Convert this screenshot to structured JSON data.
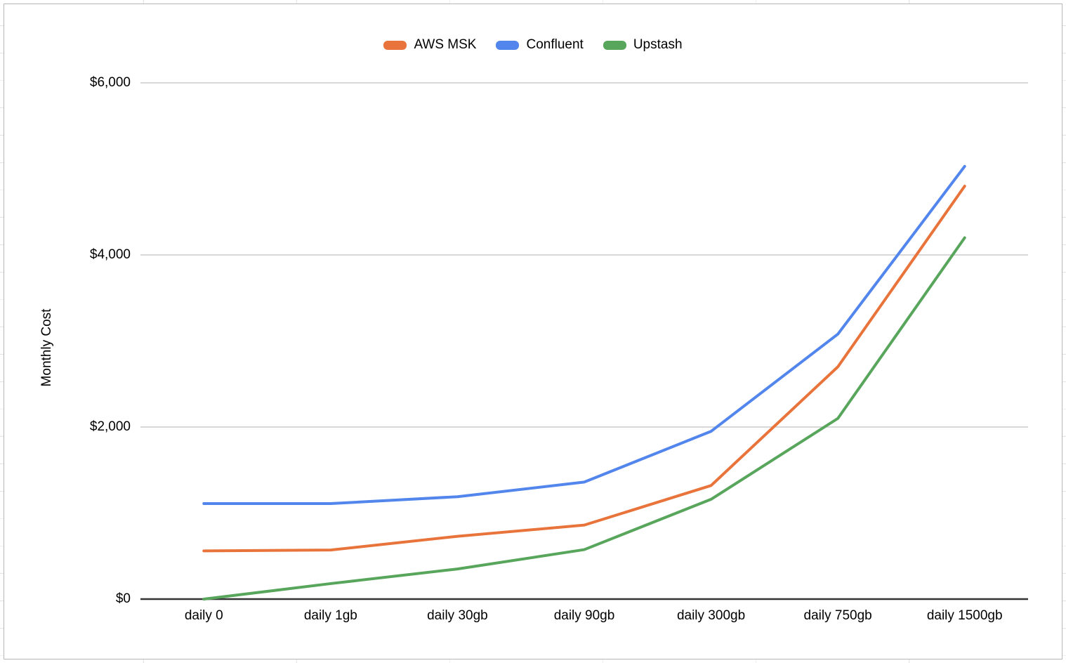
{
  "chart_data": {
    "type": "line",
    "title": "",
    "ylabel": "Monthly Cost",
    "xlabel": "",
    "categories": [
      "daily 0",
      "daily 1gb",
      "daily 30gb",
      "daily 90gb",
      "daily 300gb",
      "daily 750gb",
      "daily 1500gb"
    ],
    "series": [
      {
        "name": "AWS MSK",
        "color": "#E8743B",
        "values": [
          560,
          570,
          730,
          860,
          1320,
          2700,
          4800
        ]
      },
      {
        "name": "Confluent",
        "color": "#5286EC",
        "values": [
          1110,
          1110,
          1190,
          1360,
          1950,
          3080,
          5030
        ]
      },
      {
        "name": "Upstash",
        "color": "#58A55C",
        "values": [
          0,
          180,
          350,
          575,
          1160,
          2100,
          4200
        ]
      }
    ],
    "ylim": [
      0,
      6000
    ],
    "yticks": [
      {
        "value": 0,
        "label": "$0"
      },
      {
        "value": 2000,
        "label": "$2,000"
      },
      {
        "value": 4000,
        "label": "$4,000"
      },
      {
        "value": 6000,
        "label": "$6,000"
      }
    ],
    "grid": "horizontal",
    "legend_position": "top-center"
  },
  "colors": {
    "gridline": "#cccccc",
    "axis_line": "#333333",
    "panel_border": "#b7b7b7",
    "sheet_gridline": "#e2e4e2",
    "background": "#ffffff"
  }
}
